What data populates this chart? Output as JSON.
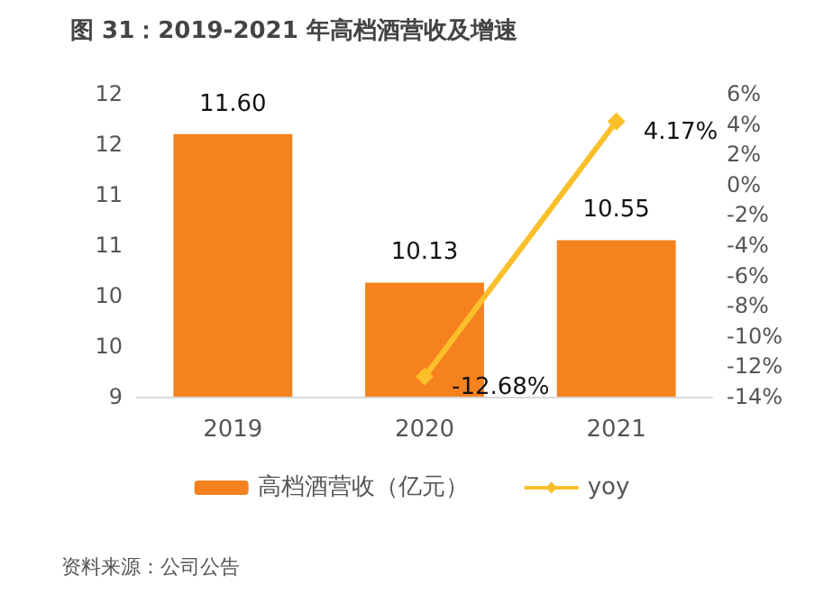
{
  "chart_data": {
    "type": "bar",
    "title": "图 31：2019-2021 年高档酒营收及增速",
    "categories": [
      "2019",
      "2020",
      "2021"
    ],
    "series": [
      {
        "name": "高档酒营收（亿元）",
        "color": "#f5821f",
        "values": [
          11.6,
          10.13,
          10.55
        ],
        "value_labels": [
          "11.60",
          "10.13",
          "10.55"
        ]
      },
      {
        "name": "yoy",
        "type": "line",
        "axis": "y2",
        "color": "#fbbf2a",
        "values": [
          null,
          -12.68,
          4.17
        ],
        "value_labels": [
          null,
          "-12.68%",
          "4.17%"
        ],
        "marker": "diamond"
      }
    ],
    "ylim": [
      9,
      12
    ],
    "yticks": [
      {
        "value": 9,
        "label": "9"
      },
      {
        "value": 9.5,
        "label": "10"
      },
      {
        "value": 10,
        "label": "10"
      },
      {
        "value": 10.5,
        "label": "11"
      },
      {
        "value": 11,
        "label": "11"
      },
      {
        "value": 11.5,
        "label": "12"
      },
      {
        "value": 12,
        "label": "12"
      }
    ],
    "y2lim": [
      -14,
      6
    ],
    "y2ticks": [
      {
        "value": -14,
        "label": "-14%"
      },
      {
        "value": -12,
        "label": "-12%"
      },
      {
        "value": -10,
        "label": "-10%"
      },
      {
        "value": -8,
        "label": "-8%"
      },
      {
        "value": -6,
        "label": "-6%"
      },
      {
        "value": -4,
        "label": "-4%"
      },
      {
        "value": -2,
        "label": "-2%"
      },
      {
        "value": 0,
        "label": "0%"
      },
      {
        "value": 2,
        "label": "2%"
      },
      {
        "value": 4,
        "label": "4%"
      },
      {
        "value": 6,
        "label": "6%"
      }
    ],
    "legend": "bottom",
    "grid": false,
    "annotations": [
      "资料来源：公司公告"
    ]
  }
}
